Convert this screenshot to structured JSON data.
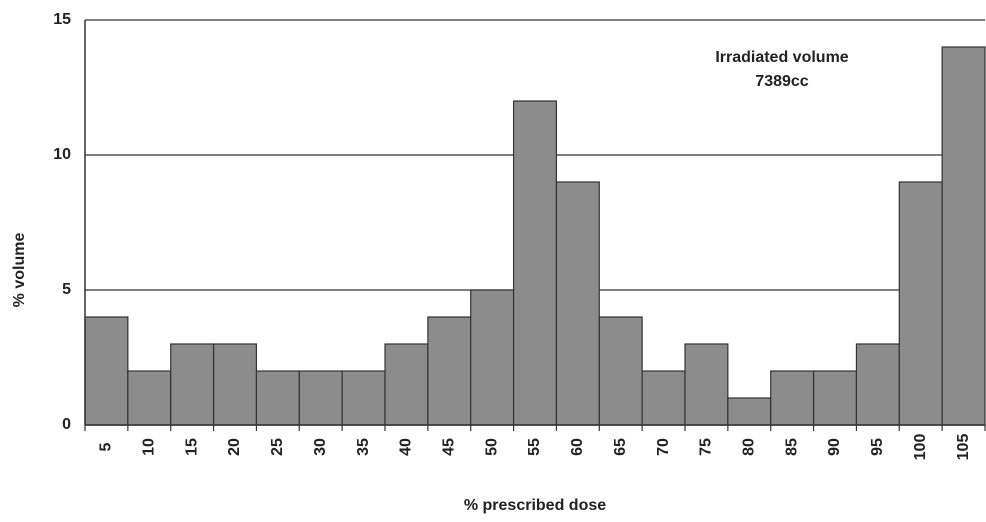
{
  "chart_data": {
    "type": "bar",
    "x_label": "% prescribed dose",
    "y_label": "% volume",
    "annotations": [
      "Irradiated volume",
      "7389cc"
    ],
    "categories": [
      "5",
      "10",
      "15",
      "20",
      "25",
      "30",
      "35",
      "40",
      "45",
      "50",
      "55",
      "60",
      "65",
      "70",
      "75",
      "80",
      "85",
      "90",
      "95",
      "100",
      "105"
    ],
    "values": [
      4,
      2,
      3,
      3,
      2,
      2,
      2,
      3,
      4,
      5,
      12,
      9,
      4,
      2,
      3,
      1,
      2,
      2,
      3,
      9,
      14
    ],
    "color": "#8c8c8c",
    "ylim": [
      0,
      15
    ],
    "yticks": [
      0,
      5,
      10,
      15
    ],
    "grid": true
  }
}
